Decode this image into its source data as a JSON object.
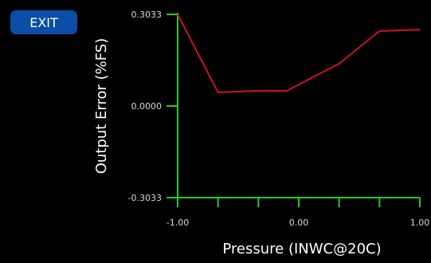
{
  "exit_label": "EXIT",
  "colors": {
    "background": "#000000",
    "axis": "#22cc22",
    "series": "#cc1122",
    "button": "#0b4ea8"
  },
  "chart_data": {
    "type": "line",
    "title": "",
    "xlabel": "Pressure (INWC@20C)",
    "ylabel": "Output Error (%FS)",
    "xlim": [
      -1.0,
      1.0
    ],
    "ylim": [
      -0.3033,
      0.3033
    ],
    "x_ticks": [
      -1.0,
      -0.6667,
      -0.3333,
      0.0,
      0.3333,
      0.6667,
      1.0
    ],
    "x_tick_labels": [
      "-1.00",
      "",
      "",
      "0.00",
      "",
      "",
      "1.00"
    ],
    "y_ticks": [
      -0.3033,
      0.0,
      0.3033
    ],
    "y_tick_labels": [
      "-0.3033",
      "0.0000",
      "0.3033"
    ],
    "grid": false,
    "series": [
      {
        "x": [
          -1.0,
          -0.6667,
          -0.3333,
          -0.1,
          0.3333,
          0.6667,
          1.0
        ],
        "y": [
          0.3033,
          0.045,
          0.05,
          0.05,
          0.14,
          0.248,
          0.253
        ]
      }
    ]
  }
}
